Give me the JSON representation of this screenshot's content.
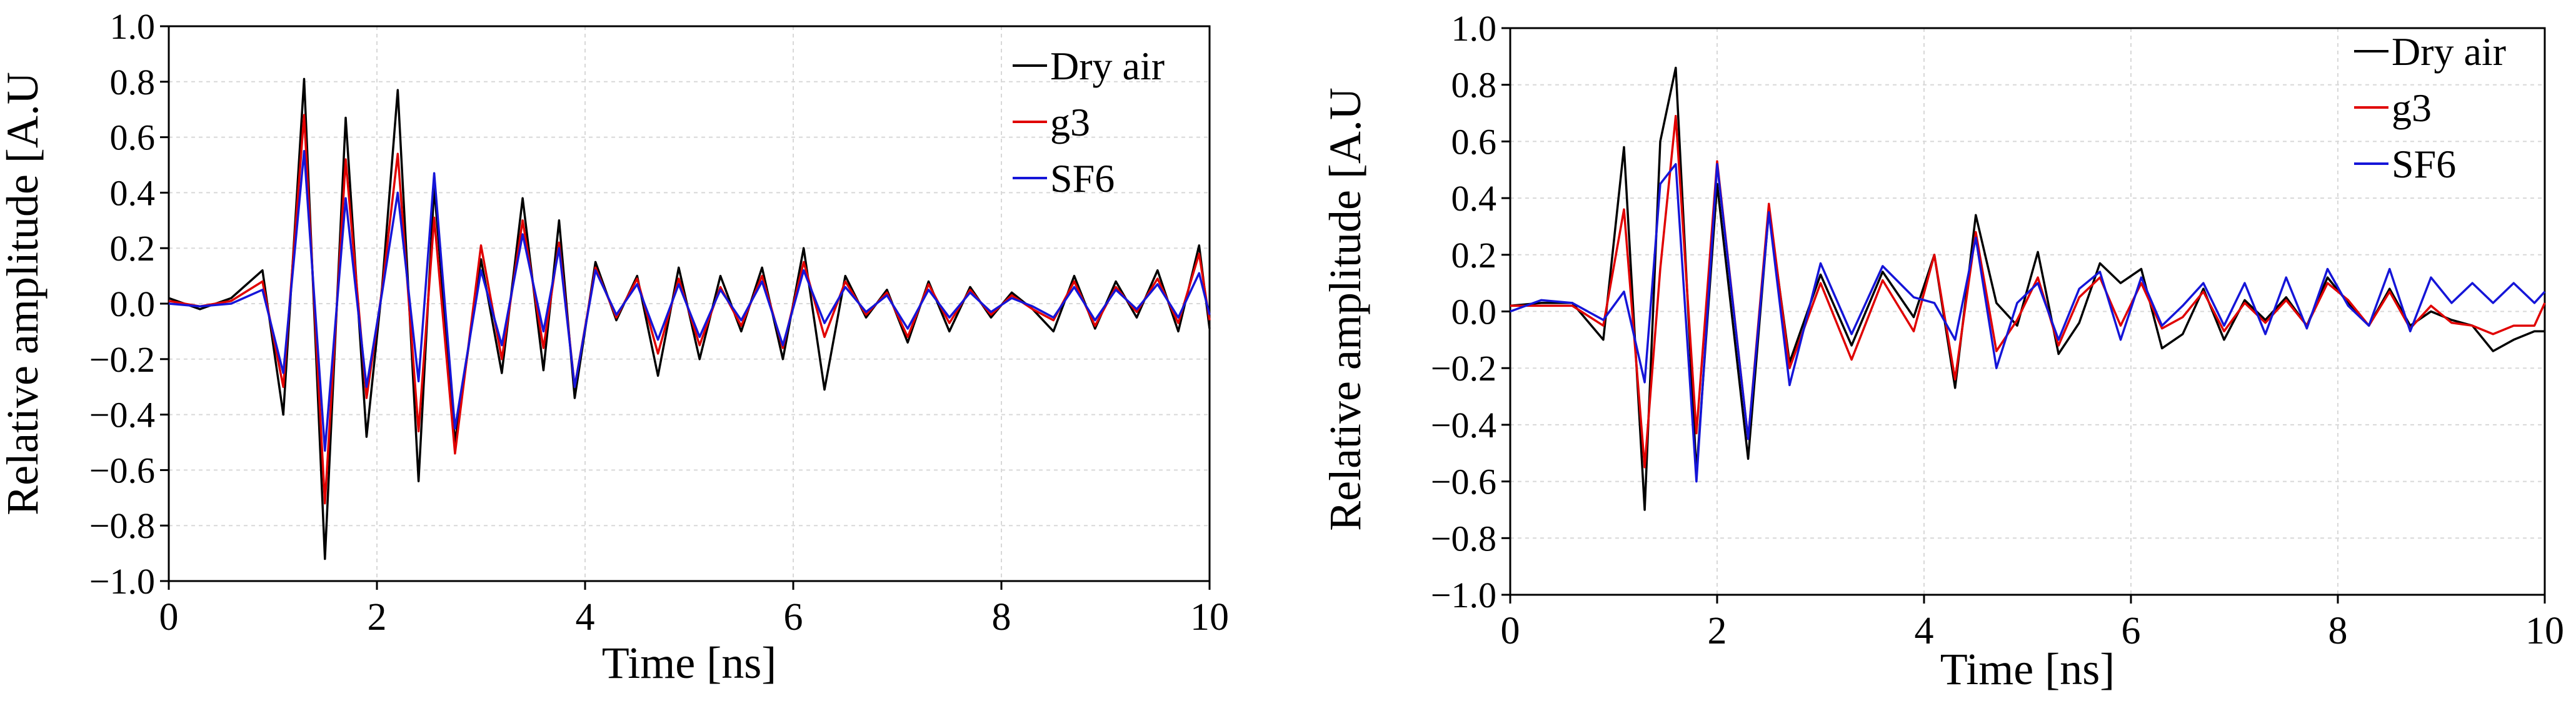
{
  "chart_data": [
    {
      "type": "line",
      "title": "",
      "xlabel": "Time [ns]",
      "ylabel": "Relative amplitude [A.U",
      "xlim": [
        0,
        10
      ],
      "ylim": [
        -1.0,
        1.0
      ],
      "x_ticks": [
        "0",
        "2",
        "4",
        "6",
        "8",
        "10"
      ],
      "y_ticks": [
        "−1.0",
        "−0.8",
        "−0.6",
        "−0.4",
        "−0.2",
        "0.0",
        "0.2",
        "0.4",
        "0.6",
        "0.8",
        "1.0"
      ],
      "grid": true,
      "legend_position": "top-right",
      "series": [
        {
          "name": "Dry air",
          "color": "#000000",
          "x": [
            0,
            0.3,
            0.6,
            0.9,
            1.1,
            1.3,
            1.5,
            1.7,
            1.9,
            2.05,
            2.2,
            2.4,
            2.55,
            2.75,
            3.0,
            3.2,
            3.4,
            3.6,
            3.75,
            3.9,
            4.1,
            4.3,
            4.5,
            4.7,
            4.9,
            5.1,
            5.3,
            5.5,
            5.7,
            5.9,
            6.1,
            6.3,
            6.5,
            6.7,
            6.9,
            7.1,
            7.3,
            7.5,
            7.7,
            7.9,
            8.1,
            8.3,
            8.5,
            8.7,
            8.9,
            9.1,
            9.3,
            9.5,
            9.7,
            9.9,
            10
          ],
          "y": [
            0.02,
            -0.02,
            0.02,
            0.12,
            -0.4,
            0.81,
            -0.92,
            0.67,
            -0.48,
            0.06,
            0.77,
            -0.64,
            0.42,
            -0.5,
            0.16,
            -0.25,
            0.38,
            -0.24,
            0.3,
            -0.34,
            0.15,
            -0.06,
            0.1,
            -0.26,
            0.13,
            -0.2,
            0.1,
            -0.1,
            0.13,
            -0.2,
            0.2,
            -0.31,
            0.1,
            -0.05,
            0.05,
            -0.14,
            0.08,
            -0.1,
            0.06,
            -0.05,
            0.04,
            -0.02,
            -0.1,
            0.1,
            -0.09,
            0.08,
            -0.05,
            0.12,
            -0.1,
            0.21,
            -0.09
          ]
        },
        {
          "name": "g3",
          "color": "#e00000",
          "x": [
            0,
            0.3,
            0.6,
            0.9,
            1.1,
            1.3,
            1.5,
            1.7,
            1.9,
            2.05,
            2.2,
            2.4,
            2.55,
            2.75,
            3.0,
            3.2,
            3.4,
            3.6,
            3.75,
            3.9,
            4.1,
            4.3,
            4.5,
            4.7,
            4.9,
            5.1,
            5.3,
            5.5,
            5.7,
            5.9,
            6.1,
            6.3,
            6.5,
            6.7,
            6.9,
            7.1,
            7.3,
            7.5,
            7.7,
            7.9,
            8.1,
            8.3,
            8.5,
            8.7,
            8.9,
            9.1,
            9.3,
            9.5,
            9.7,
            9.9,
            10
          ],
          "y": [
            0.01,
            -0.01,
            0.01,
            0.08,
            -0.3,
            0.68,
            -0.72,
            0.52,
            -0.34,
            0.05,
            0.54,
            -0.46,
            0.31,
            -0.54,
            0.21,
            -0.2,
            0.3,
            -0.16,
            0.22,
            -0.3,
            0.13,
            -0.05,
            0.09,
            -0.18,
            0.09,
            -0.15,
            0.06,
            -0.08,
            0.1,
            -0.16,
            0.15,
            -0.12,
            0.08,
            -0.04,
            0.04,
            -0.12,
            0.07,
            -0.07,
            0.05,
            -0.04,
            0.03,
            -0.02,
            -0.06,
            0.08,
            -0.08,
            0.06,
            -0.03,
            0.09,
            -0.07,
            0.18,
            -0.06
          ]
        },
        {
          "name": "SF6",
          "color": "#1515d8",
          "x": [
            0,
            0.3,
            0.6,
            0.9,
            1.1,
            1.3,
            1.5,
            1.7,
            1.9,
            2.05,
            2.2,
            2.4,
            2.55,
            2.75,
            3.0,
            3.2,
            3.4,
            3.6,
            3.75,
            3.9,
            4.1,
            4.3,
            4.5,
            4.7,
            4.9,
            5.1,
            5.3,
            5.5,
            5.7,
            5.9,
            6.1,
            6.3,
            6.5,
            6.7,
            6.9,
            7.1,
            7.3,
            7.5,
            7.7,
            7.9,
            8.1,
            8.3,
            8.5,
            8.7,
            8.9,
            9.1,
            9.3,
            9.5,
            9.7,
            9.9,
            10
          ],
          "y": [
            0.0,
            -0.01,
            0.0,
            0.05,
            -0.25,
            0.55,
            -0.53,
            0.38,
            -0.3,
            0.04,
            0.4,
            -0.28,
            0.47,
            -0.45,
            0.12,
            -0.15,
            0.25,
            -0.1,
            0.2,
            -0.3,
            0.12,
            -0.04,
            0.07,
            -0.13,
            0.07,
            -0.12,
            0.05,
            -0.06,
            0.08,
            -0.15,
            0.12,
            -0.07,
            0.06,
            -0.03,
            0.03,
            -0.09,
            0.05,
            -0.05,
            0.04,
            -0.03,
            0.02,
            -0.01,
            -0.05,
            0.06,
            -0.06,
            0.05,
            -0.02,
            0.07,
            -0.05,
            0.11,
            -0.04
          ]
        }
      ]
    },
    {
      "type": "line",
      "title": "",
      "xlabel": "Time [ns]",
      "ylabel": "Relative amplitude [A.U",
      "xlim": [
        0,
        10
      ],
      "ylim": [
        -1.0,
        1.0
      ],
      "x_ticks": [
        "0",
        "2",
        "4",
        "6",
        "8",
        "10"
      ],
      "y_ticks": [
        "−1.0",
        "−0.8",
        "−0.6",
        "−0.4",
        "−0.2",
        "0.0",
        "0.2",
        "0.4",
        "0.6",
        "0.8",
        "1.0"
      ],
      "grid": true,
      "legend_position": "top-right",
      "series": [
        {
          "name": "Dry air",
          "color": "#000000",
          "x": [
            0,
            0.3,
            0.6,
            0.9,
            1.1,
            1.3,
            1.45,
            1.6,
            1.8,
            2.0,
            2.3,
            2.5,
            2.7,
            3.0,
            3.3,
            3.6,
            3.9,
            4.1,
            4.3,
            4.5,
            4.7,
            4.9,
            5.1,
            5.3,
            5.5,
            5.7,
            5.9,
            6.1,
            6.3,
            6.5,
            6.7,
            6.9,
            7.1,
            7.3,
            7.5,
            7.7,
            7.9,
            8.1,
            8.3,
            8.5,
            8.7,
            8.9,
            9.1,
            9.3,
            9.5,
            9.7,
            9.9,
            10
          ],
          "y": [
            0.02,
            0.03,
            0.03,
            -0.1,
            0.58,
            -0.7,
            0.6,
            0.86,
            -0.57,
            0.45,
            -0.52,
            0.36,
            -0.18,
            0.13,
            -0.12,
            0.14,
            -0.02,
            0.2,
            -0.27,
            0.34,
            0.03,
            -0.05,
            0.21,
            -0.15,
            -0.04,
            0.17,
            0.1,
            0.15,
            -0.13,
            -0.08,
            0.08,
            -0.1,
            0.04,
            -0.03,
            0.05,
            -0.05,
            0.12,
            0.03,
            -0.05,
            0.08,
            -0.05,
            0.0,
            -0.03,
            -0.05,
            -0.14,
            -0.1,
            -0.07,
            -0.07
          ]
        },
        {
          "name": "g3",
          "color": "#e00000",
          "x": [
            0,
            0.3,
            0.6,
            0.9,
            1.1,
            1.3,
            1.45,
            1.6,
            1.8,
            2.0,
            2.3,
            2.5,
            2.7,
            3.0,
            3.3,
            3.6,
            3.9,
            4.1,
            4.3,
            4.5,
            4.7,
            4.9,
            5.1,
            5.3,
            5.5,
            5.7,
            5.9,
            6.1,
            6.3,
            6.5,
            6.7,
            6.9,
            7.1,
            7.3,
            7.5,
            7.7,
            7.9,
            8.1,
            8.3,
            8.5,
            8.7,
            8.9,
            9.1,
            9.3,
            9.5,
            9.7,
            9.9,
            10
          ],
          "y": [
            0.02,
            0.02,
            0.02,
            -0.05,
            0.36,
            -0.55,
            0.15,
            0.69,
            -0.43,
            0.53,
            -0.45,
            0.38,
            -0.2,
            0.1,
            -0.17,
            0.11,
            -0.07,
            0.2,
            -0.24,
            0.28,
            -0.14,
            -0.03,
            0.12,
            -0.12,
            0.05,
            0.12,
            -0.05,
            0.1,
            -0.06,
            -0.02,
            0.07,
            -0.07,
            0.03,
            -0.04,
            0.04,
            -0.05,
            0.1,
            0.04,
            -0.05,
            0.07,
            -0.06,
            0.02,
            -0.04,
            -0.05,
            -0.08,
            -0.05,
            -0.05,
            0.03
          ]
        },
        {
          "name": "SF6",
          "color": "#1515d8",
          "x": [
            0,
            0.3,
            0.6,
            0.9,
            1.1,
            1.3,
            1.45,
            1.6,
            1.8,
            2.0,
            2.3,
            2.5,
            2.7,
            3.0,
            3.3,
            3.6,
            3.9,
            4.1,
            4.3,
            4.5,
            4.7,
            4.9,
            5.1,
            5.3,
            5.5,
            5.7,
            5.9,
            6.1,
            6.3,
            6.5,
            6.7,
            6.9,
            7.1,
            7.3,
            7.5,
            7.7,
            7.9,
            8.1,
            8.3,
            8.5,
            8.7,
            8.9,
            9.1,
            9.3,
            9.5,
            9.7,
            9.9,
            10
          ],
          "y": [
            0.0,
            0.04,
            0.03,
            -0.03,
            0.07,
            -0.25,
            0.45,
            0.52,
            -0.6,
            0.52,
            -0.45,
            0.35,
            -0.26,
            0.17,
            -0.08,
            0.16,
            0.05,
            0.03,
            -0.1,
            0.26,
            -0.2,
            0.03,
            0.1,
            -0.1,
            0.08,
            0.14,
            -0.1,
            0.12,
            -0.05,
            0.02,
            0.1,
            -0.05,
            0.1,
            -0.08,
            0.12,
            -0.06,
            0.15,
            0.02,
            -0.05,
            0.15,
            -0.07,
            0.12,
            0.03,
            0.1,
            0.03,
            0.1,
            0.03,
            0.07
          ]
        }
      ]
    }
  ]
}
